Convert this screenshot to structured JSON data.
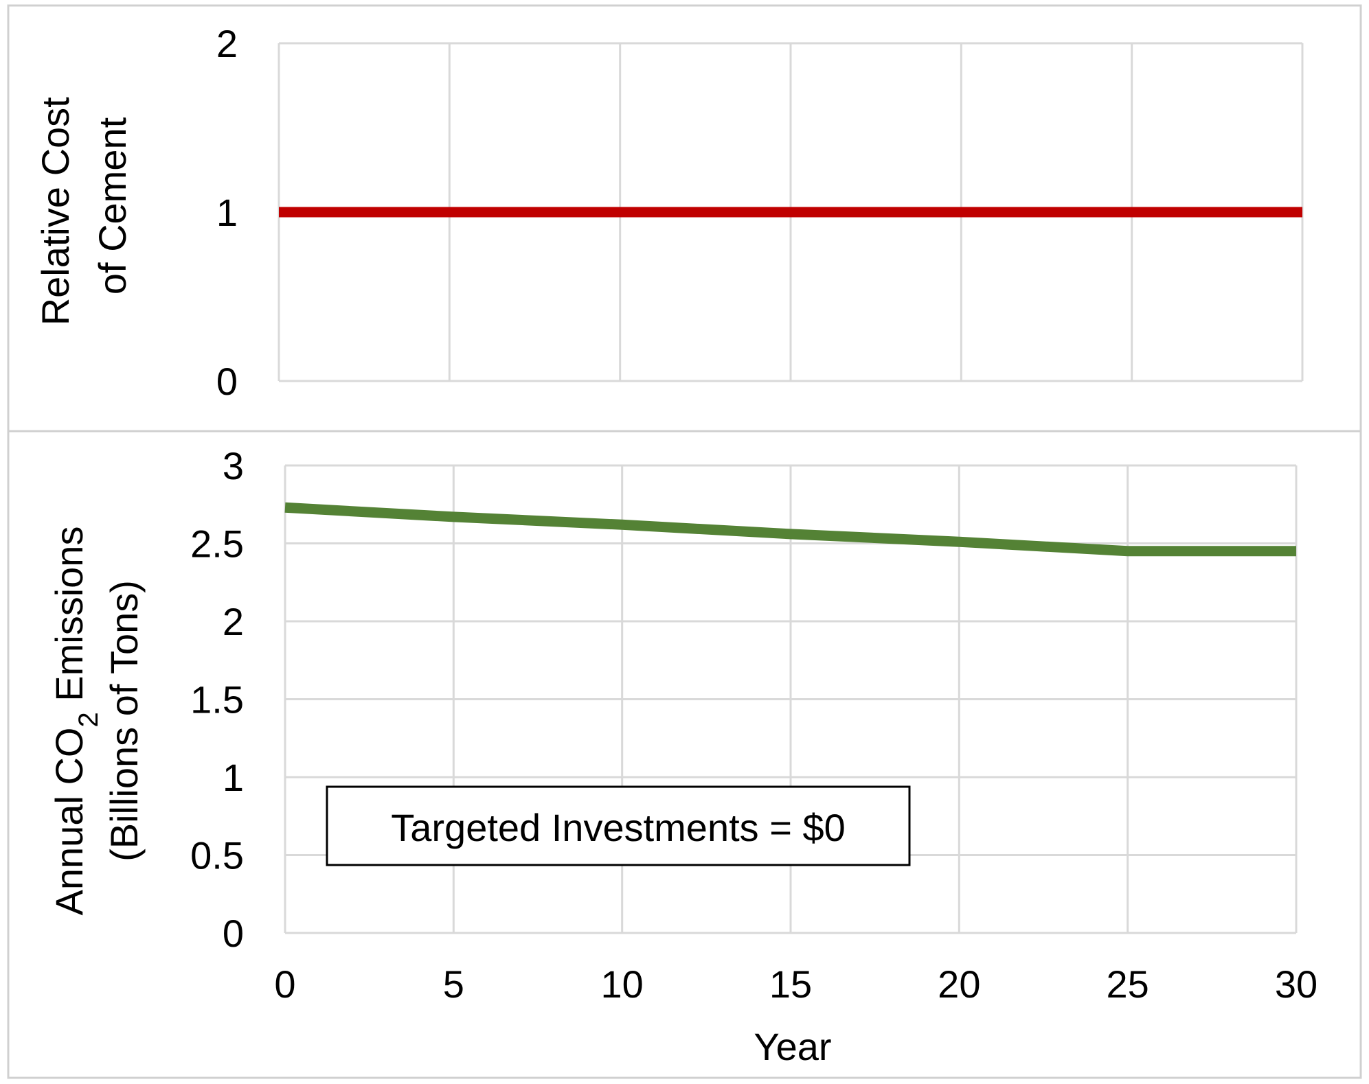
{
  "chart_data": [
    {
      "type": "line",
      "ylabel_lines": [
        "Relative Cost",
        "of Cement"
      ],
      "x": [
        0,
        5,
        10,
        15,
        20,
        25,
        30
      ],
      "xlim": [
        0,
        30
      ],
      "ylim": [
        0,
        2
      ],
      "x_ticks": [
        0,
        5,
        10,
        15,
        20,
        25,
        30
      ],
      "y_ticks": [
        0,
        1,
        2
      ],
      "grid": true,
      "series": [
        {
          "values": [
            1,
            1,
            1,
            1,
            1,
            1,
            1
          ],
          "color": "#c00000"
        }
      ]
    },
    {
      "type": "line",
      "ylabel_lines": [
        "Annual CO₂ Emissions",
        "(Billions of Tons)"
      ],
      "xlabel": "Year",
      "x": [
        0,
        5,
        10,
        15,
        20,
        25,
        30
      ],
      "xlim": [
        0,
        30
      ],
      "ylim": [
        0,
        3
      ],
      "x_ticks": [
        0,
        5,
        10,
        15,
        20,
        25,
        30
      ],
      "y_ticks": [
        0,
        0.5,
        1,
        1.5,
        2,
        2.5,
        3
      ],
      "grid": true,
      "series": [
        {
          "values": [
            2.73,
            2.67,
            2.62,
            2.56,
            2.51,
            2.45,
            2.45
          ],
          "color": "#548235"
        }
      ],
      "annotation": "Targeted Investments = $0"
    }
  ]
}
